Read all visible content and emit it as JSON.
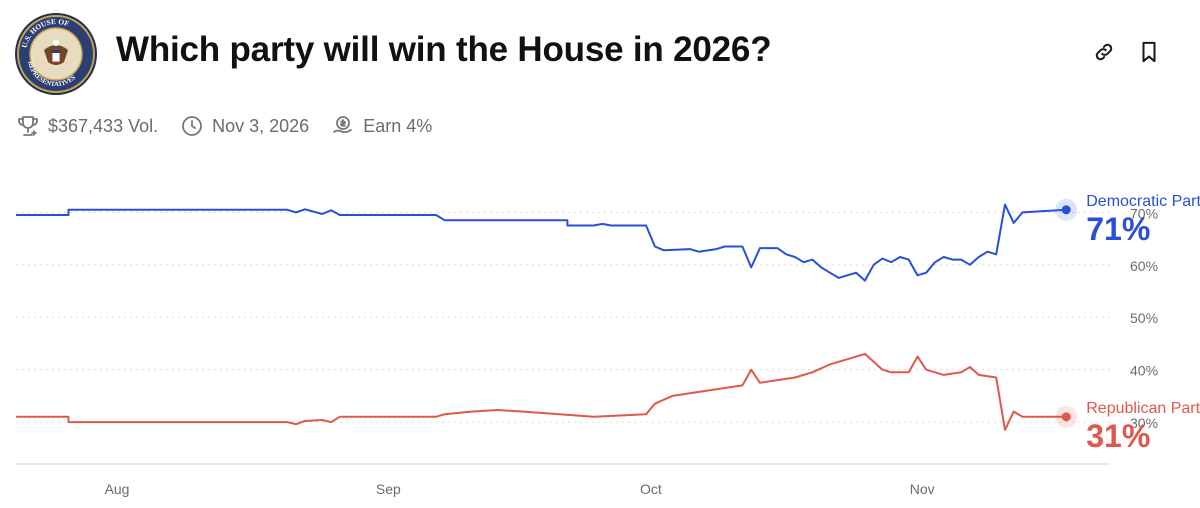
{
  "header": {
    "title": "Which party will win the House in 2026?",
    "logo_text": "U.S. HOUSE OF REPRESENTATIVES"
  },
  "meta": {
    "volume": "$367,433 Vol.",
    "end_date": "Nov 3, 2026",
    "earn": "Earn 4%"
  },
  "icons": {
    "trophy": "trophy-icon",
    "clock": "clock-icon",
    "earn": "coin-hand-icon",
    "link": "link-icon",
    "bookmark": "bookmark-icon"
  },
  "colors": {
    "democratic": "#2a4fd7",
    "republican": "#e0584b",
    "grid": "#d9d9d9",
    "axis_text": "#6b6b6b"
  },
  "chart_data": {
    "type": "line",
    "title": "",
    "xlabel": "",
    "ylabel": "",
    "ylim": [
      22,
      80
    ],
    "y_ticks": [
      30,
      40,
      50,
      60,
      70
    ],
    "y_tick_labels": [
      "30%",
      "40%",
      "50%",
      "60%",
      "70%"
    ],
    "x_range": [
      "2025-07-20",
      "2025-11-22"
    ],
    "x_ticks": [
      "2025-08-01",
      "2025-09-01",
      "2025-10-01",
      "2025-11-01"
    ],
    "x_tick_labels": [
      "Aug",
      "Sep",
      "Oct",
      "Nov"
    ],
    "grid": true,
    "series": [
      {
        "name": "Democratic Party",
        "current_label": "71%",
        "current_value": 71,
        "points": [
          [
            "2025-07-20",
            69.5
          ],
          [
            "2025-07-26",
            69.5
          ],
          [
            "2025-07-26",
            70.5
          ],
          [
            "2025-08-20",
            70.5
          ],
          [
            "2025-08-21",
            70.0
          ],
          [
            "2025-08-22",
            70.6
          ],
          [
            "2025-08-24",
            69.7
          ],
          [
            "2025-08-25",
            70.4
          ],
          [
            "2025-08-26",
            69.5
          ],
          [
            "2025-09-06",
            69.5
          ],
          [
            "2025-09-07",
            68.5
          ],
          [
            "2025-09-21",
            68.5
          ],
          [
            "2025-09-21",
            67.5
          ],
          [
            "2025-09-24",
            67.5
          ],
          [
            "2025-09-25",
            67.8
          ],
          [
            "2025-09-26",
            67.5
          ],
          [
            "2025-09-30",
            67.5
          ],
          [
            "2025-10-01",
            63.5
          ],
          [
            "2025-10-02",
            62.8
          ],
          [
            "2025-10-05",
            63.0
          ],
          [
            "2025-10-06",
            62.5
          ],
          [
            "2025-10-08",
            63.0
          ],
          [
            "2025-10-09",
            63.5
          ],
          [
            "2025-10-11",
            63.5
          ],
          [
            "2025-10-12",
            59.5
          ],
          [
            "2025-10-13",
            63.2
          ],
          [
            "2025-10-15",
            63.2
          ],
          [
            "2025-10-16",
            62.0
          ],
          [
            "2025-10-17",
            61.5
          ],
          [
            "2025-10-18",
            60.5
          ],
          [
            "2025-10-19",
            61.0
          ],
          [
            "2025-10-20",
            59.5
          ],
          [
            "2025-10-21",
            58.5
          ],
          [
            "2025-10-22",
            57.5
          ],
          [
            "2025-10-23",
            58.0
          ],
          [
            "2025-10-24",
            58.5
          ],
          [
            "2025-10-25",
            57.0
          ],
          [
            "2025-10-26",
            60.0
          ],
          [
            "2025-10-27",
            61.2
          ],
          [
            "2025-10-28",
            60.5
          ],
          [
            "2025-10-29",
            61.5
          ],
          [
            "2025-10-30",
            61.0
          ],
          [
            "2025-10-31",
            58.0
          ],
          [
            "2025-11-01",
            58.5
          ],
          [
            "2025-11-02",
            60.5
          ],
          [
            "2025-11-03",
            61.5
          ],
          [
            "2025-11-04",
            61.0
          ],
          [
            "2025-11-05",
            61.0
          ],
          [
            "2025-11-06",
            60.0
          ],
          [
            "2025-11-07",
            61.5
          ],
          [
            "2025-11-08",
            62.5
          ],
          [
            "2025-11-09",
            62.0
          ],
          [
            "2025-11-10",
            71.5
          ],
          [
            "2025-11-11",
            68.0
          ],
          [
            "2025-11-12",
            70.0
          ],
          [
            "2025-11-17",
            70.5
          ]
        ]
      },
      {
        "name": "Republican Party",
        "current_label": "31%",
        "current_value": 31,
        "points": [
          [
            "2025-07-20",
            31.0
          ],
          [
            "2025-07-26",
            31.0
          ],
          [
            "2025-07-26",
            30.0
          ],
          [
            "2025-08-20",
            30.0
          ],
          [
            "2025-08-21",
            29.6
          ],
          [
            "2025-08-22",
            30.2
          ],
          [
            "2025-08-24",
            30.4
          ],
          [
            "2025-08-25",
            30.0
          ],
          [
            "2025-08-26",
            31.0
          ],
          [
            "2025-09-06",
            31.0
          ],
          [
            "2025-09-07",
            31.5
          ],
          [
            "2025-09-10",
            32.0
          ],
          [
            "2025-09-13",
            32.3
          ],
          [
            "2025-09-16",
            32.0
          ],
          [
            "2025-09-24",
            31.0
          ],
          [
            "2025-09-30",
            31.5
          ],
          [
            "2025-10-01",
            33.5
          ],
          [
            "2025-10-03",
            35.0
          ],
          [
            "2025-10-05",
            35.5
          ],
          [
            "2025-10-07",
            36.0
          ],
          [
            "2025-10-09",
            36.5
          ],
          [
            "2025-10-11",
            37.0
          ],
          [
            "2025-10-12",
            40.0
          ],
          [
            "2025-10-13",
            37.5
          ],
          [
            "2025-10-15",
            38.0
          ],
          [
            "2025-10-17",
            38.5
          ],
          [
            "2025-10-19",
            39.5
          ],
          [
            "2025-10-21",
            41.0
          ],
          [
            "2025-10-23",
            42.0
          ],
          [
            "2025-10-25",
            43.0
          ],
          [
            "2025-10-26",
            41.5
          ],
          [
            "2025-10-27",
            40.0
          ],
          [
            "2025-10-28",
            39.5
          ],
          [
            "2025-10-30",
            39.5
          ],
          [
            "2025-10-31",
            42.5
          ],
          [
            "2025-11-01",
            40.0
          ],
          [
            "2025-11-03",
            39.0
          ],
          [
            "2025-11-05",
            39.5
          ],
          [
            "2025-11-06",
            40.5
          ],
          [
            "2025-11-07",
            39.0
          ],
          [
            "2025-11-09",
            38.5
          ],
          [
            "2025-11-10",
            28.5
          ],
          [
            "2025-11-11",
            32.0
          ],
          [
            "2025-11-12",
            31.0
          ],
          [
            "2025-11-17",
            31.0
          ]
        ]
      }
    ]
  }
}
